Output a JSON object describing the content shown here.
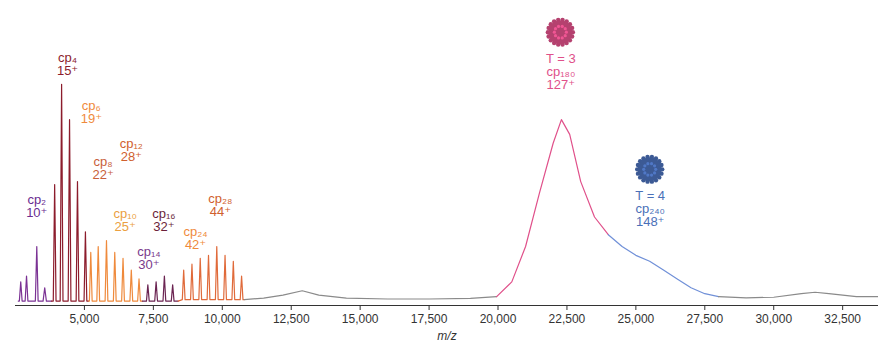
{
  "chart_data": {
    "type": "line",
    "x_label": "m/z",
    "xlim": [
      2500,
      33800
    ],
    "xticks": [
      {
        "value": 5000,
        "label": "5,000"
      },
      {
        "value": 7500,
        "label": "7,500"
      },
      {
        "value": 10000,
        "label": "10,000"
      },
      {
        "value": 12500,
        "label": "12,500"
      },
      {
        "value": 15000,
        "label": "15,000"
      },
      {
        "value": 17500,
        "label": "17,500"
      },
      {
        "value": 20000,
        "label": "20,000"
      },
      {
        "value": 22500,
        "label": "22,500"
      },
      {
        "value": 25000,
        "label": "25,000"
      },
      {
        "value": 27500,
        "label": "27,500"
      },
      {
        "value": 30000,
        "label": "30,000"
      },
      {
        "value": 32500,
        "label": "32,500"
      }
    ],
    "ylim": [
      0,
      100
    ],
    "yticks": [],
    "tick_labels": "x",
    "series": [
      {
        "color": "#7b3294",
        "x": [
          2600,
          2640,
          2690,
          2740,
          2850,
          2900,
          2950,
          3100,
          3220,
          3272,
          3320,
          3500,
          3560,
          3620,
          3800
        ],
        "values": [
          1.5,
          1.5,
          8,
          1.5,
          1.5,
          10,
          1.5,
          1.5,
          1.5,
          20,
          1.5,
          1.5,
          6,
          1.5,
          1.5
        ]
      },
      {
        "color": "#8c1c2c",
        "x": [
          3800,
          3870,
          3920,
          3970,
          4120,
          4172,
          4222,
          4410,
          4460,
          4510,
          4700,
          4748,
          4798,
          4986,
          5036,
          5086,
          5150
        ],
        "values": [
          1.5,
          1.5,
          41,
          1.5,
          1.5,
          75,
          1.5,
          1.5,
          63,
          1.5,
          1.5,
          42,
          1.5,
          1.5,
          25,
          1.5,
          1.5
        ]
      },
      {
        "color": "#ef8a3c",
        "x": [
          5150,
          5180,
          5230,
          5280,
          5450,
          5500,
          5550,
          5750,
          5800,
          5850,
          6050,
          6100,
          6150,
          6350,
          6400,
          6450,
          6650,
          6700,
          6750,
          6930,
          6980,
          7030,
          7100
        ],
        "values": [
          1.5,
          1.5,
          18,
          1.5,
          1.5,
          20,
          1.5,
          1.5,
          22,
          1.5,
          1.5,
          18,
          1.5,
          1.5,
          16,
          1.5,
          1.5,
          12,
          1.5,
          1.5,
          9,
          1.5,
          1.5
        ]
      },
      {
        "color": "#6b2452",
        "x": [
          7100,
          7250,
          7300,
          7350,
          7550,
          7600,
          7650,
          7850,
          7900,
          7950,
          8150,
          8200,
          8250,
          8400
        ],
        "values": [
          1.5,
          1.5,
          7,
          1.5,
          1.5,
          8,
          1.5,
          1.5,
          10,
          1.5,
          1.5,
          7,
          1.5,
          1.5
        ]
      },
      {
        "color": "#e06a3a",
        "x": [
          8400,
          8550,
          8600,
          8650,
          8850,
          8900,
          8950,
          9150,
          9200,
          9250,
          9450,
          9500,
          9550,
          9750,
          9800,
          9850,
          10050,
          10100,
          10150,
          10350,
          10400,
          10450,
          10650,
          10700,
          10750,
          10800
        ],
        "values": [
          1.5,
          2,
          12,
          2,
          2,
          14,
          2,
          2,
          16,
          2,
          2,
          17,
          2,
          2,
          20,
          2,
          2,
          17,
          2,
          2,
          15,
          2,
          2,
          10,
          2,
          2
        ]
      },
      {
        "color": "#8a8a8a",
        "x": [
          10800,
          11500,
          12200,
          12900,
          13500,
          14500,
          16000,
          17500,
          19000,
          19950
        ],
        "values": [
          2,
          2.5,
          3.5,
          5,
          3.5,
          2.5,
          2.2,
          2.2,
          2.4,
          3
        ]
      },
      {
        "color": "#e0508a",
        "x": [
          19950,
          20500,
          21000,
          21500,
          22000,
          22300,
          22600,
          23000,
          23500,
          24000
        ],
        "values": [
          3,
          8,
          20,
          38,
          55,
          63,
          58,
          42,
          30,
          24
        ]
      },
      {
        "color": "#7090d8",
        "x": [
          24000,
          24500,
          25000,
          25500,
          26000,
          26500,
          27000,
          27500,
          28000
        ],
        "values": [
          24,
          20,
          17,
          15,
          12,
          9,
          6,
          4,
          3
        ]
      },
      {
        "color": "#8a8a8a",
        "x": [
          28000,
          29000,
          30000,
          31000,
          31500,
          32000,
          33000,
          33800
        ],
        "values": [
          3,
          2.6,
          2.8,
          4,
          4.5,
          4,
          3,
          3
        ]
      }
    ],
    "annotations": [
      {
        "text": "cp₂\n10⁺",
        "x": 3272,
        "y": 30,
        "color": "#6a2c91"
      },
      {
        "text": "cp₄\n15⁺",
        "x": 4388,
        "y": 78,
        "color": "#8c1c2c"
      },
      {
        "text": "cp₆\n19⁺",
        "x": 5250,
        "y": 62,
        "color": "#ef8a3c"
      },
      {
        "text": "cp₈\n22⁺",
        "x": 5680,
        "y": 43,
        "color": "#c8603a"
      },
      {
        "text": "cp₁₀\n25⁺",
        "x": 6480,
        "y": 25.4,
        "color": "#eba040"
      },
      {
        "text": "cp₁₂\n28⁺",
        "x": 6700,
        "y": 49,
        "color": "#d0602e"
      },
      {
        "text": "cp₁₄\n30⁺",
        "x": 7340,
        "y": 12.5,
        "color": "#7a3a8c"
      },
      {
        "text": "cp₁₆\n32⁺",
        "x": 7880,
        "y": 25.4,
        "color": "#6b1f3a"
      },
      {
        "text": "cp₂₄\n42⁺",
        "x": 9030,
        "y": 19,
        "color": "#ef8a3c"
      },
      {
        "text": "cp₂₈\n44⁺",
        "x": 9930,
        "y": 30.5,
        "color": "#d0602e"
      },
      {
        "text": "T = 3\ncp₁₈₀\n127⁺",
        "x": 22280,
        "y": 73.5,
        "color": "#e0508a"
      },
      {
        "text": "T = 4\ncp₂₄₀\n148⁺",
        "x": 25520,
        "y": 27,
        "color": "#4a70b8"
      }
    ]
  }
}
